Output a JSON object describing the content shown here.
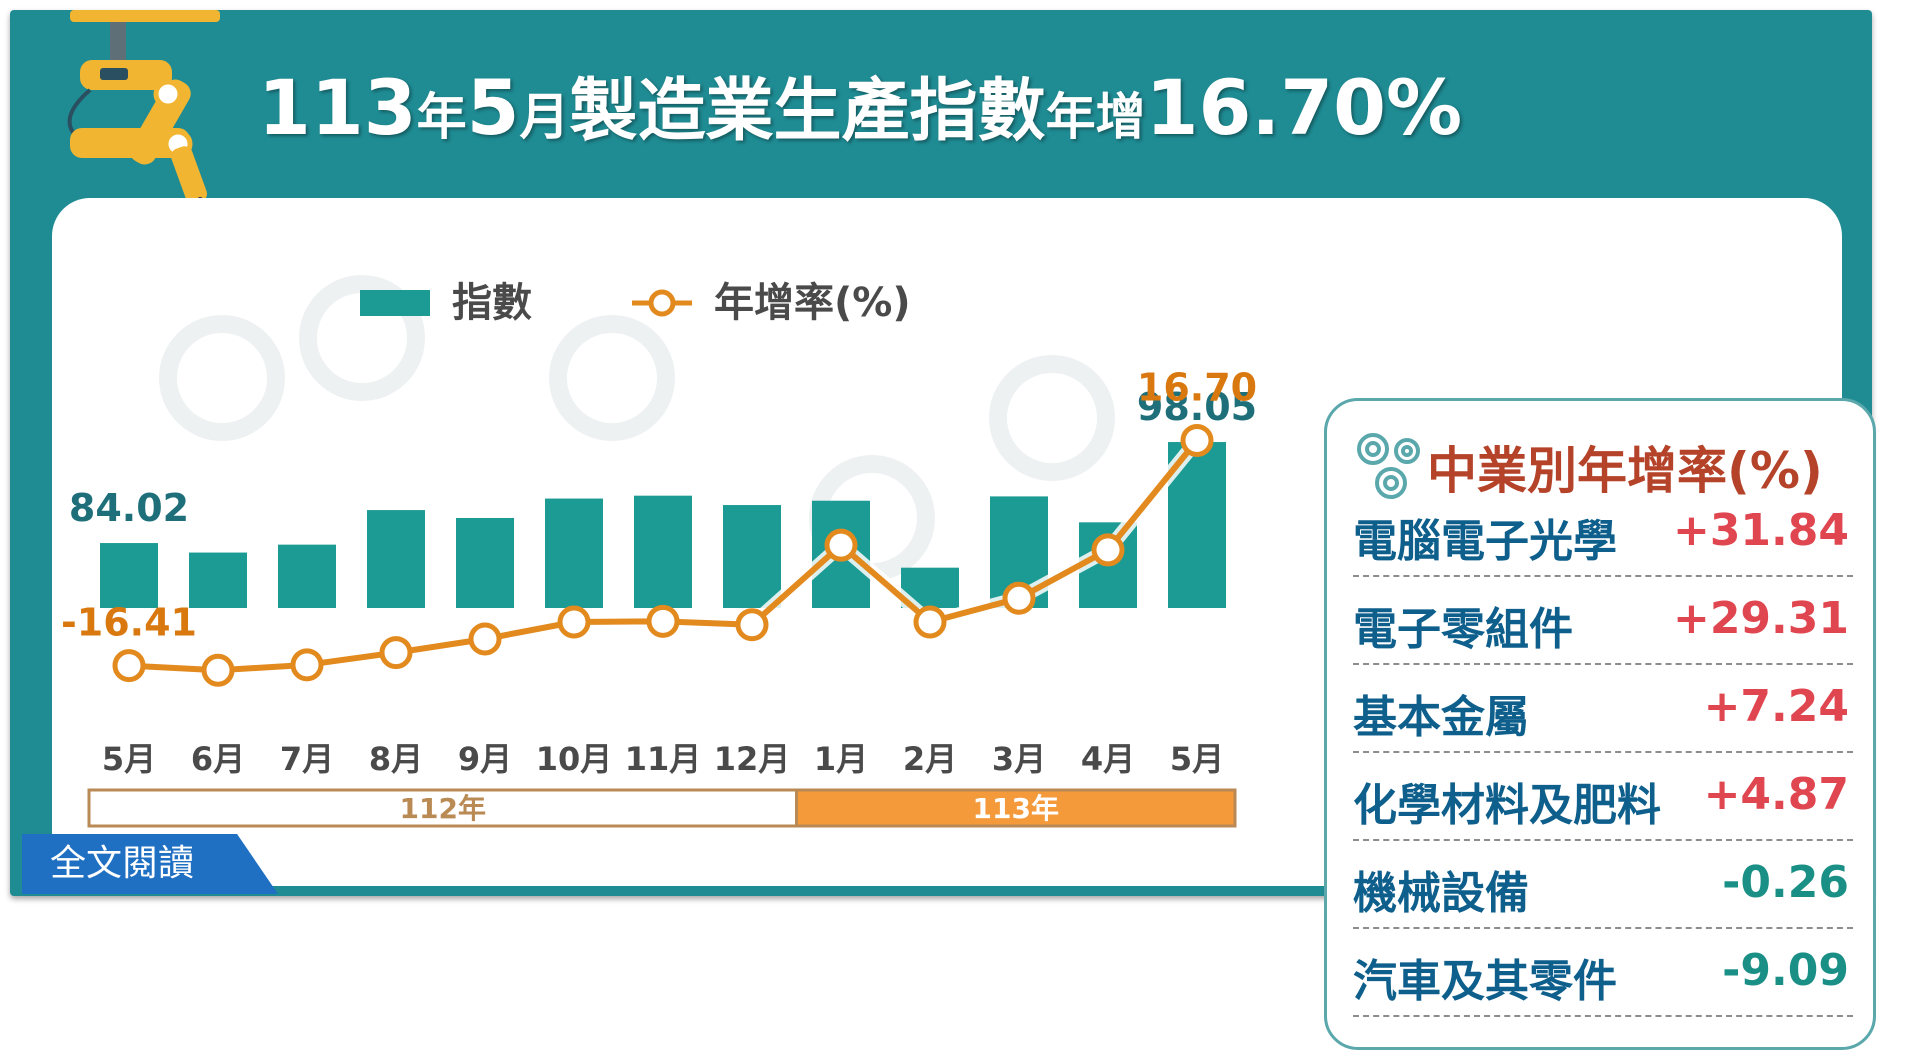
{
  "title": {
    "part1": "113",
    "part2": "年",
    "part3": "5",
    "part4": "月",
    "part5": "製造業生產指數",
    "part6": "年增",
    "part7": "16.70%"
  },
  "legend": {
    "index_label": "指數",
    "growth_label": "年增率(%)"
  },
  "year_bands": [
    {
      "label": "112年",
      "color": "#ffffff",
      "border": "#b98a54",
      "text_color": "#b98a54"
    },
    {
      "label": "113年",
      "color": "#f59a3a",
      "border": "#b98a54",
      "text_color": "#ffffff"
    }
  ],
  "side_panel": {
    "title": "中業別年增率(%)",
    "items": [
      {
        "name": "電腦電子光學",
        "value": "+31.84",
        "sign": "pos"
      },
      {
        "name": "電子零組件",
        "value": "+29.31",
        "sign": "pos"
      },
      {
        "name": "基本金屬",
        "value": "+7.24",
        "sign": "pos"
      },
      {
        "name": "化學材料及肥料",
        "value": "+4.87",
        "sign": "pos"
      },
      {
        "name": "機械設備",
        "value": "-0.26",
        "sign": "neg"
      },
      {
        "name": "汽車及其零件",
        "value": "-9.09",
        "sign": "neg"
      }
    ]
  },
  "read_more": "全文閱讀",
  "colors": {
    "background": "#1f8b93",
    "bar": "#1c9b94",
    "line": "#e28a1e",
    "label_index": "#1f6f7a",
    "label_growth": "#d9780e"
  },
  "chart_data": {
    "type": "bar",
    "categories": [
      "5月",
      "6月",
      "7月",
      "8月",
      "9月",
      "10月",
      "11月",
      "12月",
      "1月",
      "2月",
      "3月",
      "4月",
      "5月"
    ],
    "series": [
      {
        "name": "指數",
        "type": "bar",
        "values": [
          84.02,
          82.7,
          83.8,
          88.6,
          87.5,
          90.2,
          90.6,
          89.3,
          89.9,
          80.6,
          90.5,
          86.9,
          98.05
        ]
      },
      {
        "name": "年增率(%)",
        "type": "line",
        "values": [
          -16.41,
          -17.1,
          -16.3,
          -14.5,
          -12.5,
          -10.0,
          -9.9,
          -10.4,
          1.3,
          -10.0,
          -6.5,
          0.6,
          16.7
        ]
      }
    ],
    "data_labels": [
      {
        "series": 0,
        "index": 0,
        "text": "84.02"
      },
      {
        "series": 0,
        "index": 12,
        "text": "98.05"
      },
      {
        "series": 1,
        "index": 0,
        "text": "-16.41"
      },
      {
        "series": 1,
        "index": 12,
        "text": "16.70"
      }
    ],
    "legend_position": "top-left",
    "grid": false
  }
}
